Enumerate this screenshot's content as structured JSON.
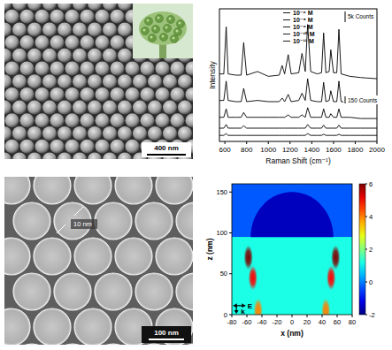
{
  "images": [
    {
      "scale_bar": "400 nm"
    },
    {
      "scale_bar": "100 nm",
      "gap_label": "10 nm"
    }
  ],
  "chart_data": [
    {
      "type": "line",
      "x_label": "Raman Shift (cm⁻¹)",
      "y_label": "Intensity",
      "x": [
        550,
        590,
        612,
        630,
        700,
        750,
        773,
        800,
        900,
        1000,
        1100,
        1127,
        1150,
        1183,
        1210,
        1280,
        1310,
        1340,
        1362,
        1390,
        1450,
        1490,
        1509,
        1530,
        1560,
        1575,
        1600,
        1630,
        1650,
        1670,
        1750,
        1850,
        2000
      ],
      "series": [
        {
          "name": "10⁻⁶ M",
          "color": "#000000",
          "values": [
            56,
            56,
            95,
            56,
            55,
            55,
            82,
            55,
            58,
            54,
            55,
            63,
            56,
            72,
            56,
            57,
            73,
            58,
            97,
            58,
            56,
            57,
            90,
            57,
            58,
            76,
            57,
            57,
            93,
            56,
            54,
            53,
            52
          ]
        },
        {
          "name": "10⁻⁸ M",
          "color": "#000000",
          "values": [
            34,
            34,
            50,
            34,
            33,
            33,
            44,
            33,
            34,
            33,
            33,
            36,
            33,
            39,
            33,
            34,
            40,
            34,
            52,
            34,
            33,
            33,
            49,
            33,
            34,
            42,
            33,
            33,
            50,
            33,
            32,
            32,
            32
          ]
        },
        {
          "name": "10⁻⁹ M",
          "color": "#000000",
          "values": [
            20,
            20,
            27,
            20,
            20,
            20,
            24,
            20,
            20,
            20,
            20,
            20,
            20,
            22,
            20,
            20,
            22,
            20,
            28,
            20,
            20,
            20,
            27,
            20,
            20,
            23,
            20,
            20,
            27,
            20,
            20,
            19,
            19
          ]
        },
        {
          "name": "10⁻¹⁰ M",
          "color": "#000000",
          "values": [
            11,
            11,
            14,
            11,
            11,
            11,
            13,
            11,
            11,
            11,
            11,
            11,
            11,
            11,
            11,
            11,
            11,
            11,
            14,
            11,
            11,
            11,
            13.5,
            11,
            11,
            11,
            11,
            11,
            13.5,
            11,
            11,
            11,
            11
          ]
        },
        {
          "name": "10⁻¹¹ M",
          "color": "#000000",
          "values": [
            5,
            5,
            6.5,
            5,
            5,
            5,
            5,
            5,
            5,
            5,
            5,
            5,
            5,
            5,
            5,
            5,
            5,
            5,
            6.5,
            5,
            5,
            5,
            6,
            5,
            5,
            5,
            5,
            5,
            6,
            5,
            5,
            5,
            5
          ]
        }
      ],
      "xlim": [
        550,
        2000
      ],
      "xticks": [
        600,
        800,
        1000,
        1200,
        1400,
        1600,
        1800,
        2000
      ],
      "ylim": [
        0,
        110
      ],
      "tick_labels": "x",
      "legend": "upper center",
      "annotations": [
        "5k Counts",
        "150 Counts"
      ]
    },
    {
      "type": "field_map",
      "x_label": "x (nm)",
      "y_label": "z (nm)",
      "xlim": [
        -80,
        80
      ],
      "xticks": [
        -80,
        -60,
        -40,
        -20,
        0,
        20,
        40,
        60,
        80
      ],
      "ylim": [
        0,
        160
      ],
      "yticks": [
        0,
        50,
        100,
        150
      ],
      "color_range": [
        -2,
        6
      ],
      "color_ticks": [
        -2,
        0,
        2,
        4,
        6
      ],
      "lower_value": 1.2,
      "upper_value": -0.3,
      "particle_value": -1.5,
      "interface_z": 95,
      "particle_radius": 55,
      "hotspots": [
        {
          "x": -58,
          "z": 70,
          "value": 6
        },
        {
          "x": 58,
          "z": 70,
          "value": 6
        },
        {
          "x": -52,
          "z": 45,
          "value": 5
        },
        {
          "x": 52,
          "z": 45,
          "value": 5
        },
        {
          "x": -45,
          "z": 5,
          "value": 4
        },
        {
          "x": 45,
          "z": 5,
          "value": 4
        }
      ],
      "annotations": [
        "E",
        "k"
      ]
    }
  ]
}
